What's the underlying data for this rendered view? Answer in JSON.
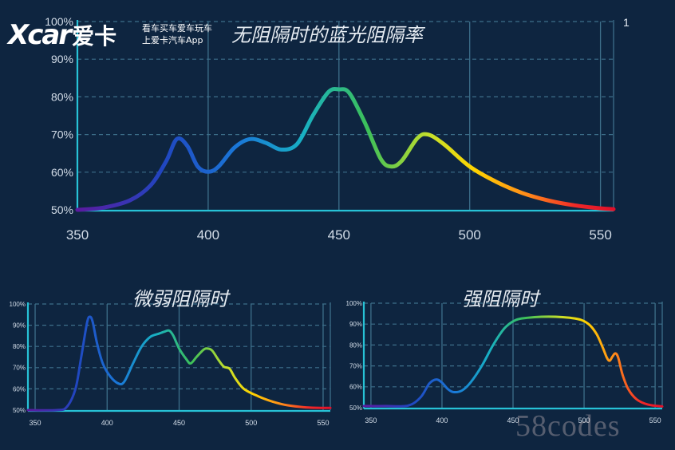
{
  "logo": {
    "mark": "Xcar",
    "cn": "爱卡",
    "slogan_line1": "看车买车爱车玩车",
    "slogan_line2": "上爱卡汽车App"
  },
  "corner_label": "1",
  "watermark": "58codes",
  "colors": {
    "background": "#0e2540",
    "axis": "#27c2d6",
    "grid": "#3d6f8a",
    "text": "#d3dde8"
  },
  "chart_data": [
    {
      "type": "line",
      "title": "无阻隔时的蓝光阻隔率",
      "xlim": [
        350,
        555
      ],
      "ylim": [
        50,
        100
      ],
      "xticks": [
        350,
        400,
        450,
        500,
        550
      ],
      "yticks": [
        50,
        60,
        70,
        80,
        90,
        100
      ],
      "ytick_labels": [
        "50%",
        "60%",
        "70%",
        "80%",
        "90%",
        "100%"
      ],
      "gradient": "spectrum",
      "grid": true,
      "points": [
        [
          350,
          50
        ],
        [
          360,
          50.6
        ],
        [
          370,
          52.5
        ],
        [
          378,
          56.5
        ],
        [
          384,
          63
        ],
        [
          388,
          68.8
        ],
        [
          392,
          67
        ],
        [
          396,
          61.5
        ],
        [
          400,
          60.1
        ],
        [
          404,
          61.5
        ],
        [
          410,
          66.5
        ],
        [
          416,
          68.8
        ],
        [
          422,
          67.8
        ],
        [
          428,
          66
        ],
        [
          434,
          67.5
        ],
        [
          440,
          75
        ],
        [
          446,
          81.3
        ],
        [
          450,
          82
        ],
        [
          454,
          81
        ],
        [
          460,
          73
        ],
        [
          466,
          63.5
        ],
        [
          470,
          61.5
        ],
        [
          474,
          63
        ],
        [
          480,
          69
        ],
        [
          484,
          70
        ],
        [
          490,
          67.5
        ],
        [
          500,
          61.5
        ],
        [
          510,
          57.5
        ],
        [
          520,
          54.5
        ],
        [
          530,
          52.5
        ],
        [
          540,
          51.2
        ],
        [
          550,
          50.4
        ],
        [
          555,
          50.2
        ]
      ]
    },
    {
      "type": "line",
      "title": "微弱阻隔时",
      "xlim": [
        345,
        555
      ],
      "ylim": [
        50,
        100
      ],
      "xticks": [
        350,
        400,
        450,
        500,
        550
      ],
      "yticks": [
        50,
        60,
        70,
        80,
        90,
        100
      ],
      "ytick_labels": [
        "50%",
        "60%",
        "70%",
        "80%",
        "90%",
        "100%"
      ],
      "gradient": "spectrum",
      "grid": true,
      "points": [
        [
          345,
          50
        ],
        [
          365,
          50
        ],
        [
          372,
          51.5
        ],
        [
          378,
          60
        ],
        [
          382,
          75
        ],
        [
          386,
          91
        ],
        [
          388,
          94
        ],
        [
          390,
          91.5
        ],
        [
          393,
          81.5
        ],
        [
          397,
          72
        ],
        [
          402,
          66
        ],
        [
          408,
          62.5
        ],
        [
          412,
          63.5
        ],
        [
          418,
          72
        ],
        [
          424,
          80
        ],
        [
          430,
          84.5
        ],
        [
          436,
          86
        ],
        [
          440,
          87
        ],
        [
          443,
          87.5
        ],
        [
          446,
          85
        ],
        [
          450,
          79
        ],
        [
          455,
          74
        ],
        [
          458,
          72
        ],
        [
          462,
          75
        ],
        [
          467,
          78.5
        ],
        [
          470,
          79
        ],
        [
          473,
          78
        ],
        [
          477,
          74
        ],
        [
          481,
          70.5
        ],
        [
          485,
          69.5
        ],
        [
          489,
          65
        ],
        [
          495,
          60
        ],
        [
          505,
          56.5
        ],
        [
          515,
          54
        ],
        [
          525,
          52.3
        ],
        [
          540,
          51.2
        ],
        [
          555,
          51
        ]
      ]
    },
    {
      "type": "line",
      "title": "强阻隔时",
      "xlim": [
        345,
        555
      ],
      "ylim": [
        50,
        100
      ],
      "xticks": [
        350,
        400,
        450,
        500,
        550
      ],
      "yticks": [
        50,
        60,
        70,
        80,
        90,
        100
      ],
      "ytick_labels": [
        "50%",
        "60%",
        "70%",
        "80%",
        "90%",
        "100%"
      ],
      "gradient": "spectrum",
      "grid": true,
      "points": [
        [
          345,
          50.8
        ],
        [
          360,
          50.8
        ],
        [
          376,
          51
        ],
        [
          385,
          55
        ],
        [
          391,
          61.5
        ],
        [
          396,
          63.5
        ],
        [
          400,
          62
        ],
        [
          404,
          59
        ],
        [
          408,
          57.5
        ],
        [
          414,
          58.2
        ],
        [
          420,
          62
        ],
        [
          428,
          70
        ],
        [
          436,
          80
        ],
        [
          444,
          88
        ],
        [
          452,
          92
        ],
        [
          460,
          93
        ],
        [
          470,
          93.5
        ],
        [
          480,
          93.5
        ],
        [
          490,
          93
        ],
        [
          498,
          92
        ],
        [
          504,
          89.5
        ],
        [
          509,
          85
        ],
        [
          513,
          79
        ],
        [
          516,
          74
        ],
        [
          518,
          72.5
        ],
        [
          520,
          74.5
        ],
        [
          522,
          76
        ],
        [
          524,
          74
        ],
        [
          527,
          66
        ],
        [
          531,
          59
        ],
        [
          537,
          54
        ],
        [
          545,
          51.5
        ],
        [
          555,
          50.6
        ]
      ]
    }
  ]
}
